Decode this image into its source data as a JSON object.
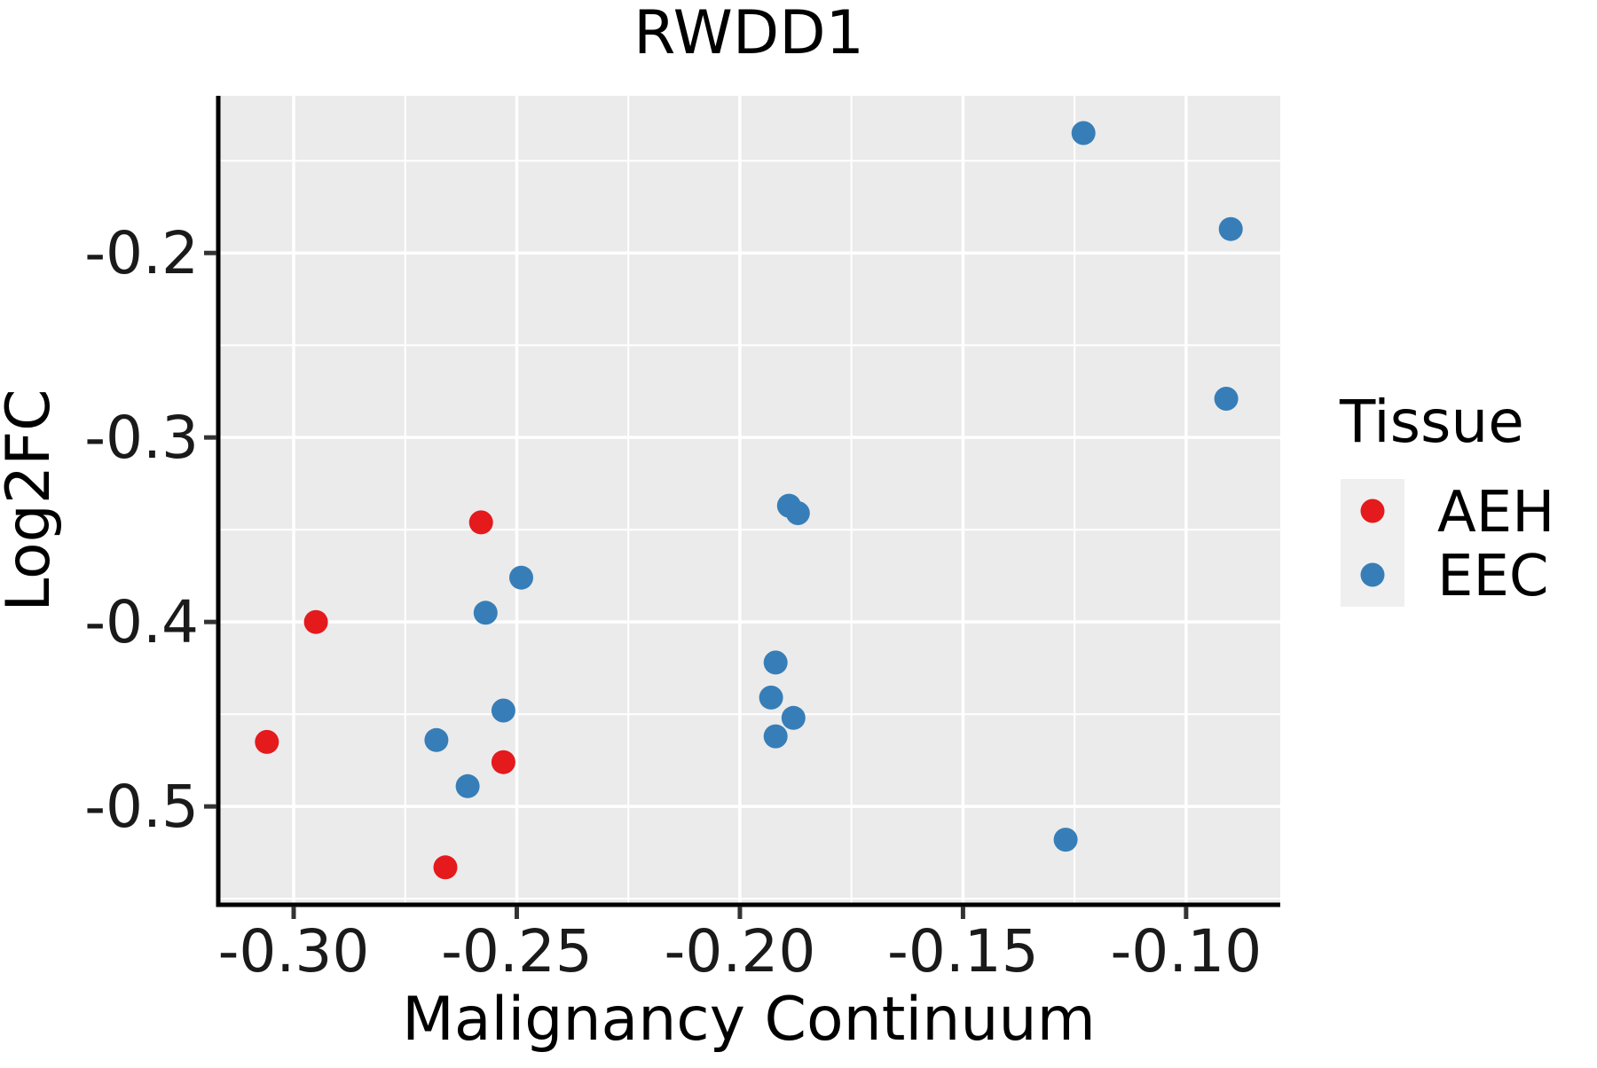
{
  "chart_data": {
    "type": "scatter",
    "title": "RWDD1",
    "xlabel": "Malignancy Continuum",
    "ylabel": "Log2FC",
    "xlim": [
      -0.3169,
      -0.0789
    ],
    "ylim": [
      -0.5533,
      -0.1148
    ],
    "x_ticks": {
      "values": [
        -0.3,
        -0.25,
        -0.2,
        -0.15,
        -0.1
      ],
      "labels": [
        "-0.30",
        "-0.25",
        "-0.20",
        "-0.15",
        "-0.10"
      ]
    },
    "y_ticks": {
      "values": [
        -0.2,
        -0.3,
        -0.4,
        -0.5
      ],
      "labels": [
        "-0.2",
        "-0.3",
        "-0.4",
        "-0.5"
      ]
    },
    "x_minor": [
      -0.275,
      -0.225,
      -0.175,
      -0.125
    ],
    "y_minor": [
      -0.15,
      -0.25,
      -0.35,
      -0.45,
      -0.55
    ],
    "grid": "on",
    "legend": {
      "title": "Tissue",
      "position": "right"
    },
    "series": [
      {
        "name": "AEH",
        "color": "#E41A1C",
        "points": [
          [
            -0.306,
            -0.465
          ],
          [
            -0.295,
            -0.4
          ],
          [
            -0.266,
            -0.533
          ],
          [
            -0.258,
            -0.346
          ],
          [
            -0.253,
            -0.476
          ]
        ]
      },
      {
        "name": "EEC",
        "color": "#377EB8",
        "points": [
          [
            -0.268,
            -0.464
          ],
          [
            -0.261,
            -0.489
          ],
          [
            -0.257,
            -0.395
          ],
          [
            -0.253,
            -0.448
          ],
          [
            -0.249,
            -0.376
          ],
          [
            -0.193,
            -0.441
          ],
          [
            -0.192,
            -0.422
          ],
          [
            -0.192,
            -0.462
          ],
          [
            -0.189,
            -0.337
          ],
          [
            -0.188,
            -0.452
          ],
          [
            -0.187,
            -0.341
          ],
          [
            -0.127,
            -0.518
          ],
          [
            -0.123,
            -0.135
          ],
          [
            -0.091,
            -0.279
          ],
          [
            -0.09,
            -0.187
          ]
        ]
      }
    ],
    "style": {
      "panel_bg": "#EBEBEB",
      "grid_color": "#FFFFFF",
      "axis_color": "#000000",
      "tick_color": "#333333",
      "legend_key_bg": "#EFEFEF",
      "point_radius": 13.5
    }
  }
}
